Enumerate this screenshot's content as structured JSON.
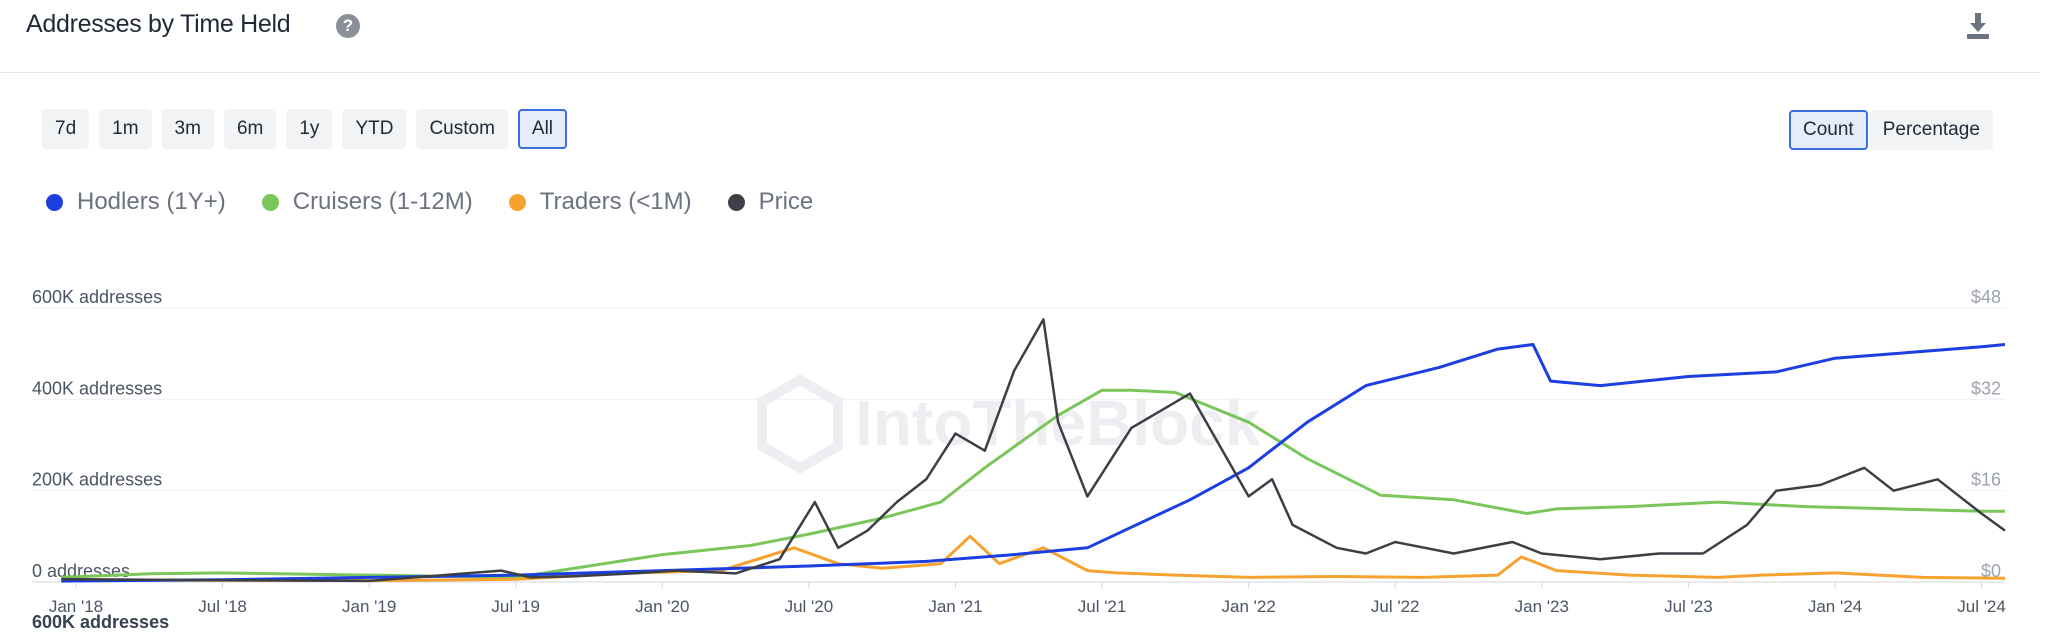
{
  "header": {
    "title": "Addresses by Time Held"
  },
  "time_ranges": [
    {
      "label": "7d",
      "active": false
    },
    {
      "label": "1m",
      "active": false
    },
    {
      "label": "3m",
      "active": false
    },
    {
      "label": "6m",
      "active": false
    },
    {
      "label": "1y",
      "active": false
    },
    {
      "label": "YTD",
      "active": false
    },
    {
      "label": "Custom",
      "active": false
    },
    {
      "label": "All",
      "active": true
    }
  ],
  "modes": [
    {
      "label": "Count",
      "active": true
    },
    {
      "label": "Percentage",
      "active": false
    }
  ],
  "watermark": "IntoTheBlock",
  "chart_data": {
    "type": "line",
    "x_ticks": [
      "Jan '18",
      "Jul '18",
      "Jan '19",
      "Jul '19",
      "Jan '20",
      "Jul '20",
      "Jan '21",
      "Jul '21",
      "Jan '22",
      "Jul '22",
      "Jan '23",
      "Jul '23",
      "Jan '24",
      "Jul '24"
    ],
    "y_left": {
      "ticks": [
        "0 addresses",
        "200K addresses",
        "400K addresses",
        "600K addresses"
      ],
      "values": [
        0,
        200000,
        400000,
        600000
      ],
      "range": [
        0,
        600000
      ]
    },
    "y_right": {
      "ticks": [
        "$0",
        "$16",
        "$32",
        "$48"
      ],
      "values": [
        0,
        16,
        32,
        48
      ],
      "range": [
        0,
        48
      ]
    },
    "bottom_label": "600K addresses",
    "grid": true,
    "legend_position": "top-left",
    "series": [
      {
        "name": "Hodlers (1Y+)",
        "color": "#1b3fe0",
        "axis": "left",
        "x": [
          2017.95,
          2018.5,
          2019.0,
          2019.5,
          2019.75,
          2020.0,
          2020.5,
          2020.9,
          2021.2,
          2021.45,
          2021.6,
          2021.8,
          2022.0,
          2022.2,
          2022.4,
          2022.65,
          2022.85,
          2022.97,
          2023.03,
          2023.2,
          2023.5,
          2023.8,
          2024.0,
          2024.3,
          2024.5,
          2024.58
        ],
        "values": [
          2000,
          5000,
          10000,
          15000,
          20000,
          25000,
          35000,
          45000,
          60000,
          75000,
          120000,
          180000,
          250000,
          350000,
          430000,
          470000,
          510000,
          520000,
          440000,
          430000,
          450000,
          460000,
          490000,
          505000,
          515000,
          520000
        ]
      },
      {
        "name": "Cruisers (1-12M)",
        "color": "#7ac65a",
        "axis": "left",
        "x": [
          2017.95,
          2018.25,
          2018.5,
          2019.0,
          2019.5,
          2019.75,
          2020.0,
          2020.3,
          2020.5,
          2020.75,
          2020.95,
          2021.1,
          2021.35,
          2021.5,
          2021.6,
          2021.75,
          2022.0,
          2022.2,
          2022.45,
          2022.7,
          2022.95,
          2023.05,
          2023.3,
          2023.6,
          2023.75,
          2023.9,
          2024.2,
          2024.5,
          2024.58
        ],
        "values": [
          10000,
          18000,
          20000,
          15000,
          10000,
          35000,
          60000,
          80000,
          105000,
          140000,
          175000,
          250000,
          365000,
          420000,
          420000,
          415000,
          350000,
          270000,
          190000,
          180000,
          150000,
          160000,
          165000,
          175000,
          170000,
          165000,
          160000,
          155000,
          155000
        ]
      },
      {
        "name": "Traders (<1M)",
        "color": "#f7a22e",
        "axis": "left",
        "x": [
          2017.95,
          2018.5,
          2019.0,
          2019.5,
          2019.9,
          2020.2,
          2020.45,
          2020.6,
          2020.75,
          2020.95,
          2021.05,
          2021.15,
          2021.3,
          2021.45,
          2021.55,
          2021.75,
          2022.0,
          2022.3,
          2022.6,
          2022.85,
          2022.93,
          2023.05,
          2023.3,
          2023.6,
          2023.75,
          2024.0,
          2024.3,
          2024.58
        ],
        "values": [
          5000,
          4000,
          3000,
          6000,
          20000,
          25000,
          75000,
          40000,
          30000,
          40000,
          100000,
          40000,
          75000,
          25000,
          20000,
          15000,
          10000,
          12000,
          10000,
          15000,
          55000,
          25000,
          15000,
          10000,
          15000,
          20000,
          10000,
          8000
        ]
      },
      {
        "name": "Price",
        "color": "#3d3f46",
        "axis": "right",
        "x": [
          2017.95,
          2018.5,
          2019.0,
          2019.45,
          2019.55,
          2019.7,
          2019.9,
          2020.05,
          2020.25,
          2020.4,
          2020.52,
          2020.6,
          2020.7,
          2020.8,
          2020.9,
          2021.0,
          2021.1,
          2021.2,
          2021.3,
          2021.35,
          2021.45,
          2021.55,
          2021.6,
          2021.7,
          2021.8,
          2021.9,
          2022.0,
          2022.08,
          2022.15,
          2022.3,
          2022.4,
          2022.5,
          2022.7,
          2022.9,
          2023.0,
          2023.2,
          2023.4,
          2023.55,
          2023.7,
          2023.8,
          2023.95,
          2024.1,
          2024.2,
          2024.35,
          2024.5,
          2024.58
        ],
        "values": [
          0.5,
          0.3,
          0.2,
          2,
          0.8,
          1,
          1.5,
          2,
          1.5,
          4,
          14,
          6,
          9,
          14,
          18,
          26,
          23,
          37,
          46,
          28,
          15,
          23,
          27,
          30,
          33,
          24,
          15,
          18,
          10,
          6,
          5,
          7,
          5,
          7,
          5,
          4,
          5,
          5,
          10,
          16,
          17,
          20,
          16,
          18,
          12,
          9
        ]
      }
    ]
  }
}
